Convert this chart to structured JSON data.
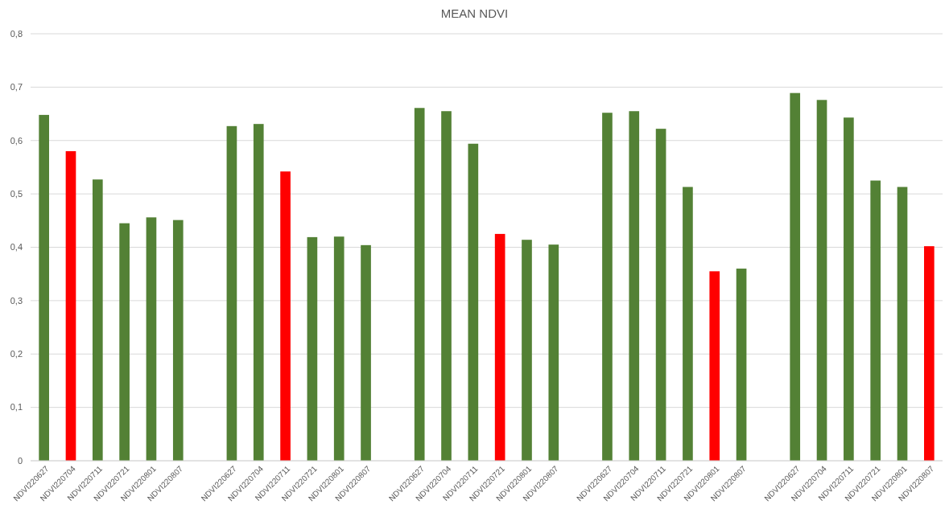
{
  "chart_data": {
    "type": "bar",
    "title": "MEAN NDVI",
    "categories": [
      "NDVI220627",
      "NDVI220704",
      "NDVI220711",
      "NDVI220721",
      "NDVI220801",
      "NDVI220807",
      null,
      "NDVI220627",
      "NDVI220704",
      "NDVI220711",
      "NDVI220721",
      "NDVI220801",
      "NDVI220807",
      null,
      "NDVI220627",
      "NDVI220704",
      "NDVI220711",
      "NDVI220721",
      "NDVI220801",
      "NDVI220807",
      null,
      "NDVI220627",
      "NDVI220704",
      "NDVI220711",
      "NDVI220721",
      "NDVI220801",
      "NDVI220807",
      null,
      "NDVI220627",
      "NDVI220704",
      "NDVI220711",
      "NDVI220721",
      "NDVI220801",
      "NDVI220807"
    ],
    "values": [
      0.648,
      0.58,
      0.527,
      0.445,
      0.456,
      0.451,
      null,
      0.627,
      0.631,
      0.542,
      0.419,
      0.42,
      0.404,
      null,
      0.661,
      0.655,
      0.594,
      0.425,
      0.414,
      0.405,
      null,
      0.652,
      0.655,
      0.622,
      0.513,
      0.355,
      0.36,
      null,
      0.689,
      0.676,
      0.643,
      0.525,
      0.513,
      0.402
    ],
    "colors": [
      "#538135",
      "#ff0000",
      "#538135",
      "#538135",
      "#538135",
      "#538135",
      null,
      "#538135",
      "#538135",
      "#ff0000",
      "#538135",
      "#538135",
      "#538135",
      null,
      "#538135",
      "#538135",
      "#538135",
      "#ff0000",
      "#538135",
      "#538135",
      null,
      "#538135",
      "#538135",
      "#538135",
      "#538135",
      "#ff0000",
      "#538135",
      null,
      "#538135",
      "#538135",
      "#538135",
      "#538135",
      "#538135",
      "#ff0000"
    ],
    "ylim": [
      0,
      0.8
    ],
    "yticks": [
      0,
      {
        "value": 0.1,
        "label": "0,1"
      },
      {
        "value": 0.2,
        "label": "0,2"
      },
      {
        "value": 0.3,
        "label": "0,3"
      },
      {
        "value": 0.4,
        "label": "0,4"
      },
      {
        "value": 0.5,
        "label": "0,5"
      },
      {
        "value": 0.6,
        "label": "0,6"
      },
      {
        "value": 0.7,
        "label": "0,7"
      },
      {
        "value": 0.8,
        "label": "0,8"
      }
    ],
    "grid": "y"
  }
}
